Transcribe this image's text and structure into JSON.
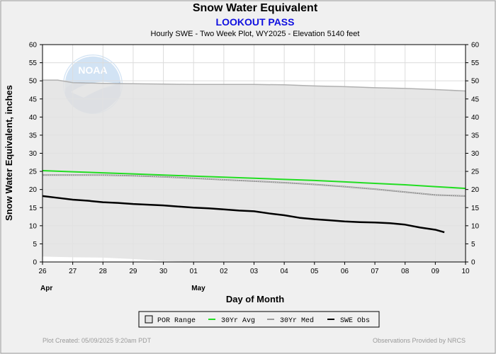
{
  "header": {
    "title": "Snow Water Equivalent",
    "station": "LOOKOUT PASS",
    "subtitle": "Hourly SWE - Two Week Plot, WY2025 -  Elevation 5140 feet"
  },
  "footer": {
    "created": "Plot Created: 05/09/2025 9:20am PDT",
    "provided_by": "Observations Provided by NRCS"
  },
  "logo": {
    "text": "NOAA"
  },
  "legend": {
    "por_label": "POR Range",
    "avg_label": "30Yr Avg",
    "med_label": "30Yr Med",
    "obs_label": "SWE Obs"
  },
  "chart_data": {
    "type": "line",
    "title": "Snow Water Equivalent",
    "xlabel": "Day of Month",
    "ylabel": "Snow Water Equivalent, inches",
    "ylim": [
      0,
      60
    ],
    "xlim": [
      0,
      14
    ],
    "x_ticks": [
      "26",
      "27",
      "28",
      "29",
      "30",
      "01",
      "02",
      "03",
      "04",
      "05",
      "06",
      "07",
      "08",
      "09",
      "10"
    ],
    "y_ticks": [
      0,
      5,
      10,
      15,
      20,
      25,
      30,
      35,
      40,
      45,
      50,
      55,
      60
    ],
    "month_labels": [
      {
        "text": "Apr",
        "x": 0
      },
      {
        "text": "May",
        "x": 5
      }
    ],
    "grid": true,
    "legend_position": "bottom",
    "colors": {
      "por": "#e2e2e2",
      "por_border": "#b0b0b0",
      "avg": "#22dd22",
      "med": "#999999",
      "obs": "#000000"
    },
    "series": [
      {
        "name": "POR Range",
        "x": [
          0,
          0.5,
          1,
          2,
          3,
          4,
          5,
          6,
          7,
          8,
          9,
          10,
          11,
          12,
          13,
          14
        ],
        "upper": [
          50.2,
          50.2,
          49.5,
          49.3,
          49.2,
          49.1,
          49.0,
          49.0,
          49.0,
          48.9,
          48.6,
          48.4,
          48.1,
          47.9,
          47.6,
          47.2
        ],
        "lower": [
          1.5,
          1.4,
          1.3,
          1.2,
          0.8,
          0.3,
          0,
          0,
          0,
          0,
          0,
          0,
          0,
          0,
          0,
          0
        ]
      },
      {
        "name": "30Yr Avg",
        "x": [
          0,
          1,
          2,
          3,
          4,
          5,
          6,
          7,
          8,
          9,
          10,
          11,
          12,
          13,
          14
        ],
        "values": [
          25.2,
          24.9,
          24.6,
          24.3,
          24.0,
          23.7,
          23.4,
          23.1,
          22.8,
          22.5,
          22.1,
          21.7,
          21.3,
          20.8,
          20.3
        ]
      },
      {
        "name": "30Yr Med",
        "x": [
          0,
          1,
          2,
          3,
          4,
          5,
          6,
          7,
          8,
          9,
          10,
          11,
          12,
          13,
          14
        ],
        "values": [
          24.0,
          24.0,
          24.0,
          23.8,
          23.5,
          23.1,
          22.7,
          22.3,
          21.9,
          21.4,
          20.8,
          20.1,
          19.3,
          18.5,
          18.2
        ]
      },
      {
        "name": "SWE Obs",
        "x": [
          0,
          0.5,
          1,
          1.5,
          2,
          2.5,
          3,
          3.5,
          4,
          4.5,
          5,
          5.5,
          6,
          6.5,
          7,
          7.5,
          8,
          8.5,
          9,
          9.5,
          10,
          10.5,
          11,
          11.5,
          12,
          12.5,
          13,
          13.3
        ],
        "values": [
          18.2,
          17.7,
          17.2,
          16.9,
          16.5,
          16.3,
          16.0,
          15.8,
          15.6,
          15.3,
          15.0,
          14.8,
          14.5,
          14.2,
          14.0,
          13.4,
          12.9,
          12.2,
          11.8,
          11.5,
          11.2,
          11.0,
          10.9,
          10.7,
          10.3,
          9.5,
          8.9,
          8.2
        ]
      }
    ]
  }
}
